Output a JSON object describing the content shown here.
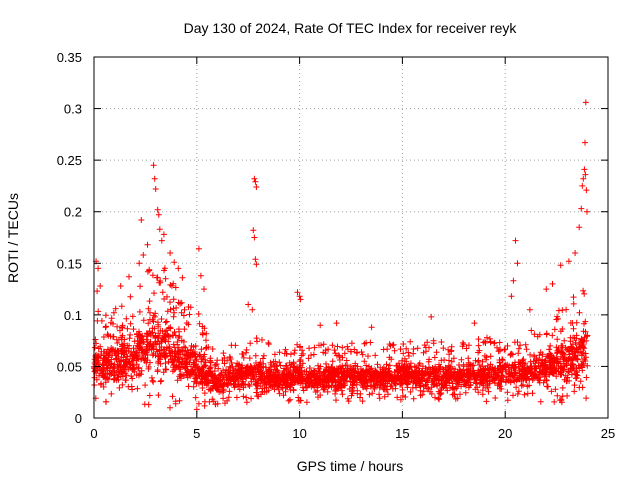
{
  "chart_data": {
    "type": "scatter",
    "title": "Day 130 of 2024, Rate Of TEC Index for receiver reyk",
    "xlabel": "GPS time / hours",
    "ylabel": "ROTI / TECUs",
    "xlim": [
      0,
      25
    ],
    "ylim": [
      0,
      0.35
    ],
    "xticks": [
      0,
      5,
      10,
      15,
      20,
      25
    ],
    "yticks": [
      0,
      0.05,
      0.1,
      0.15,
      0.2,
      0.25,
      0.3,
      0.35
    ],
    "grid": true,
    "marker": "+",
    "color": "#ff0000",
    "point_density_per_hour": 260,
    "profile": [
      {
        "x": 0.0,
        "low": 0.015,
        "high": 0.11
      },
      {
        "x": 0.5,
        "low": 0.015,
        "high": 0.1
      },
      {
        "x": 1.0,
        "low": 0.012,
        "high": 0.105
      },
      {
        "x": 1.5,
        "low": 0.01,
        "high": 0.115
      },
      {
        "x": 2.0,
        "low": 0.01,
        "high": 0.125
      },
      {
        "x": 2.5,
        "low": 0.01,
        "high": 0.15
      },
      {
        "x": 3.0,
        "low": 0.008,
        "high": 0.165
      },
      {
        "x": 3.5,
        "low": 0.008,
        "high": 0.15
      },
      {
        "x": 4.0,
        "low": 0.008,
        "high": 0.13
      },
      {
        "x": 4.5,
        "low": 0.008,
        "high": 0.115
      },
      {
        "x": 5.0,
        "low": 0.008,
        "high": 0.105
      },
      {
        "x": 5.5,
        "low": 0.01,
        "high": 0.085
      },
      {
        "x": 6.0,
        "low": 0.012,
        "high": 0.06
      },
      {
        "x": 6.5,
        "low": 0.015,
        "high": 0.07
      },
      {
        "x": 7.0,
        "low": 0.015,
        "high": 0.075
      },
      {
        "x": 7.5,
        "low": 0.015,
        "high": 0.08
      },
      {
        "x": 8.0,
        "low": 0.015,
        "high": 0.08
      },
      {
        "x": 9.0,
        "low": 0.015,
        "high": 0.07
      },
      {
        "x": 10.0,
        "low": 0.015,
        "high": 0.072
      },
      {
        "x": 12.0,
        "low": 0.015,
        "high": 0.072
      },
      {
        "x": 14.0,
        "low": 0.015,
        "high": 0.075
      },
      {
        "x": 16.0,
        "low": 0.015,
        "high": 0.075
      },
      {
        "x": 18.0,
        "low": 0.015,
        "high": 0.075
      },
      {
        "x": 19.0,
        "low": 0.015,
        "high": 0.078
      },
      {
        "x": 20.0,
        "low": 0.015,
        "high": 0.08
      },
      {
        "x": 21.0,
        "low": 0.015,
        "high": 0.085
      },
      {
        "x": 22.0,
        "low": 0.015,
        "high": 0.095
      },
      {
        "x": 23.0,
        "low": 0.015,
        "high": 0.11
      },
      {
        "x": 23.6,
        "low": 0.015,
        "high": 0.13
      },
      {
        "x": 24.0,
        "low": 0.015,
        "high": 0.14
      }
    ],
    "outliers": [
      {
        "x": 0.1,
        "y": 0.152
      },
      {
        "x": 0.2,
        "y": 0.145
      },
      {
        "x": 0.3,
        "y": 0.128
      },
      {
        "x": 0.15,
        "y": 0.123
      },
      {
        "x": 1.3,
        "y": 0.128
      },
      {
        "x": 1.7,
        "y": 0.137
      },
      {
        "x": 2.2,
        "y": 0.15
      },
      {
        "x": 2.4,
        "y": 0.158
      },
      {
        "x": 2.6,
        "y": 0.168
      },
      {
        "x": 2.3,
        "y": 0.192
      },
      {
        "x": 2.9,
        "y": 0.245
      },
      {
        "x": 2.95,
        "y": 0.232
      },
      {
        "x": 3.0,
        "y": 0.222
      },
      {
        "x": 3.1,
        "y": 0.202
      },
      {
        "x": 3.15,
        "y": 0.197
      },
      {
        "x": 3.2,
        "y": 0.183
      },
      {
        "x": 3.3,
        "y": 0.172
      },
      {
        "x": 3.4,
        "y": 0.178
      },
      {
        "x": 3.7,
        "y": 0.16
      },
      {
        "x": 3.9,
        "y": 0.151
      },
      {
        "x": 4.1,
        "y": 0.145
      },
      {
        "x": 4.3,
        "y": 0.136
      },
      {
        "x": 5.1,
        "y": 0.164
      },
      {
        "x": 5.2,
        "y": 0.138
      },
      {
        "x": 5.35,
        "y": 0.125
      },
      {
        "x": 7.8,
        "y": 0.232
      },
      {
        "x": 7.85,
        "y": 0.229
      },
      {
        "x": 7.9,
        "y": 0.224
      },
      {
        "x": 7.75,
        "y": 0.182
      },
      {
        "x": 7.8,
        "y": 0.175
      },
      {
        "x": 7.85,
        "y": 0.154
      },
      {
        "x": 7.9,
        "y": 0.149
      },
      {
        "x": 7.5,
        "y": 0.11
      },
      {
        "x": 7.7,
        "y": 0.105
      },
      {
        "x": 9.9,
        "y": 0.122
      },
      {
        "x": 10.0,
        "y": 0.118
      },
      {
        "x": 10.05,
        "y": 0.115
      },
      {
        "x": 11.0,
        "y": 0.09
      },
      {
        "x": 11.8,
        "y": 0.092
      },
      {
        "x": 13.5,
        "y": 0.088
      },
      {
        "x": 16.4,
        "y": 0.098
      },
      {
        "x": 18.5,
        "y": 0.092
      },
      {
        "x": 20.5,
        "y": 0.172
      },
      {
        "x": 20.6,
        "y": 0.15
      },
      {
        "x": 20.4,
        "y": 0.133
      },
      {
        "x": 20.3,
        "y": 0.118
      },
      {
        "x": 21.2,
        "y": 0.105
      },
      {
        "x": 22.0,
        "y": 0.125
      },
      {
        "x": 22.3,
        "y": 0.13
      },
      {
        "x": 22.7,
        "y": 0.148
      },
      {
        "x": 23.1,
        "y": 0.152
      },
      {
        "x": 23.4,
        "y": 0.16
      },
      {
        "x": 23.6,
        "y": 0.185
      },
      {
        "x": 23.7,
        "y": 0.203
      },
      {
        "x": 23.75,
        "y": 0.225
      },
      {
        "x": 23.8,
        "y": 0.232
      },
      {
        "x": 23.85,
        "y": 0.241
      },
      {
        "x": 23.9,
        "y": 0.236
      },
      {
        "x": 23.95,
        "y": 0.221
      },
      {
        "x": 23.98,
        "y": 0.2
      },
      {
        "x": 23.88,
        "y": 0.267
      },
      {
        "x": 23.92,
        "y": 0.306
      }
    ]
  }
}
